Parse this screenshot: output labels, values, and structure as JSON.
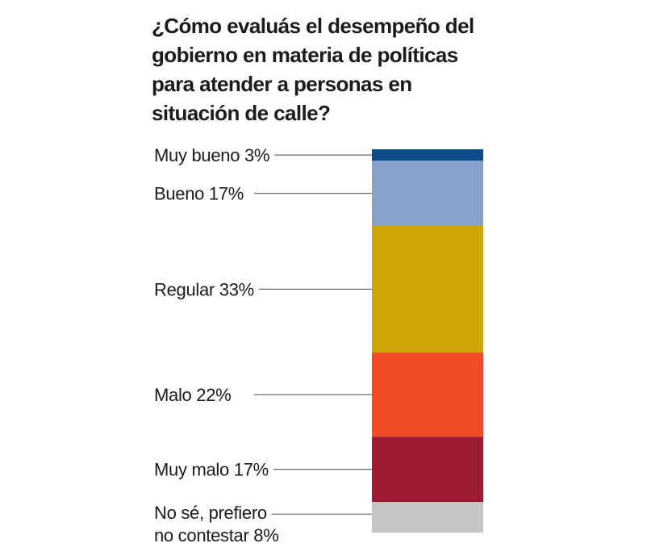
{
  "chart_data": {
    "type": "bar",
    "orientation": "stacked-vertical",
    "title": "¿Cómo evaluás el desempeño del gobierno en materia de políticas para atender a personas en situación de calle?",
    "unit": "%",
    "segments": [
      {
        "label_lines": [
          "Muy bueno 3%"
        ],
        "category": "Muy bueno",
        "value": 3,
        "color": "#0d4a8a"
      },
      {
        "label_lines": [
          "Bueno 17%"
        ],
        "category": "Bueno",
        "value": 17,
        "color": "#85a2c8"
      },
      {
        "label_lines": [
          "Regular 33%"
        ],
        "category": "Regular",
        "value": 33,
        "color": "#cea604"
      },
      {
        "label_lines": [
          "Malo 22%"
        ],
        "category": "Malo",
        "value": 22,
        "color": "#ed4c25"
      },
      {
        "label_lines": [
          "Muy malo 17%"
        ],
        "category": "Muy malo",
        "value": 17,
        "color": "#9c1a32"
      },
      {
        "label_lines": [
          "No sé, prefiero",
          "no contestar 8%"
        ],
        "category": "No sé, prefiero no contestar",
        "value": 8,
        "color": "#c4c4c4"
      }
    ]
  }
}
